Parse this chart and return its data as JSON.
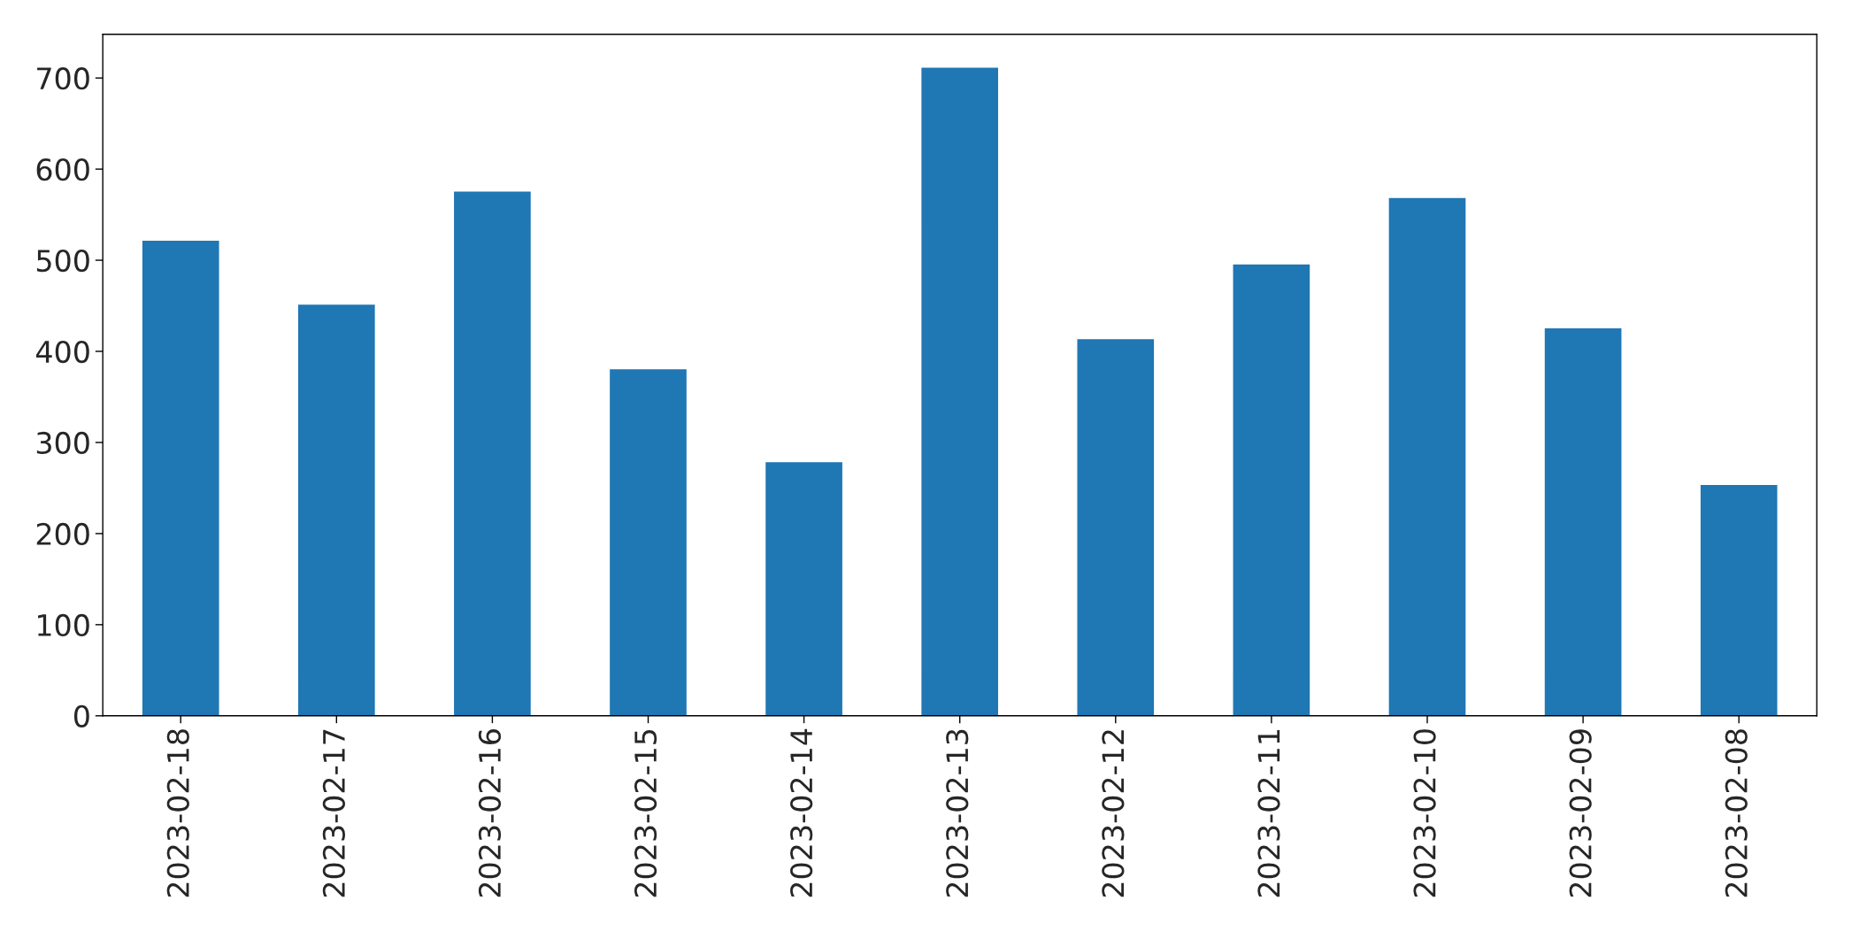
{
  "chart_data": {
    "type": "bar",
    "categories": [
      "2023-02-18",
      "2023-02-17",
      "2023-02-16",
      "2023-02-15",
      "2023-02-14",
      "2023-02-13",
      "2023-02-12",
      "2023-02-11",
      "2023-02-10",
      "2023-02-09",
      "2023-02-08"
    ],
    "values": [
      522,
      452,
      576,
      381,
      279,
      712,
      414,
      496,
      569,
      426,
      254
    ],
    "color": "#1f77b4",
    "ylim": [
      0,
      748
    ],
    "yticks": [
      0,
      100,
      200,
      300,
      400,
      500,
      600,
      700
    ],
    "grid": false,
    "legend": false
  }
}
